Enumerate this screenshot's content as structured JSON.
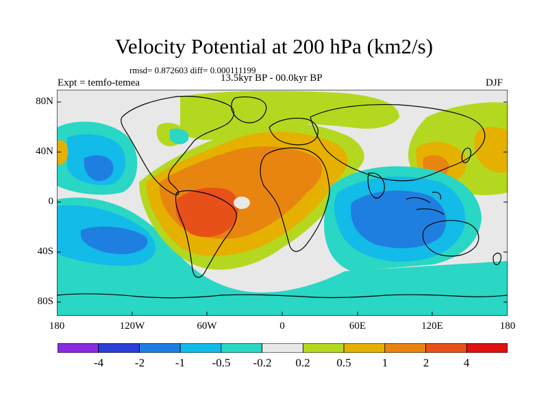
{
  "title": "Velocity Potential at 200 hPa (km2/s)",
  "stats": "rmsd= 0.872603 diff= 0.000111199",
  "period": "13.5kyr BP - 00.0kyr BP",
  "experiment": "Expt = temfo-temea",
  "season": "DJF",
  "map": {
    "lat_labels": [
      "80N",
      "40N",
      "0",
      "40S",
      "80S"
    ],
    "lon_labels": [
      "180",
      "120W",
      "60W",
      "0",
      "60E",
      "120E",
      "180"
    ]
  },
  "colorbar": {
    "labels": [
      "-4",
      "-2",
      "-1",
      "-0.5",
      "-0.2",
      "0.2",
      "0.5",
      "1",
      "2",
      "4"
    ],
    "colors": [
      "#8a2be2",
      "#2a3fd8",
      "#1f7fe0",
      "#12bbe8",
      "#2ad6c4",
      "#e8e8e8",
      "#b4d820",
      "#e6b000",
      "#e88410",
      "#e8501a",
      "#e01010"
    ]
  }
}
